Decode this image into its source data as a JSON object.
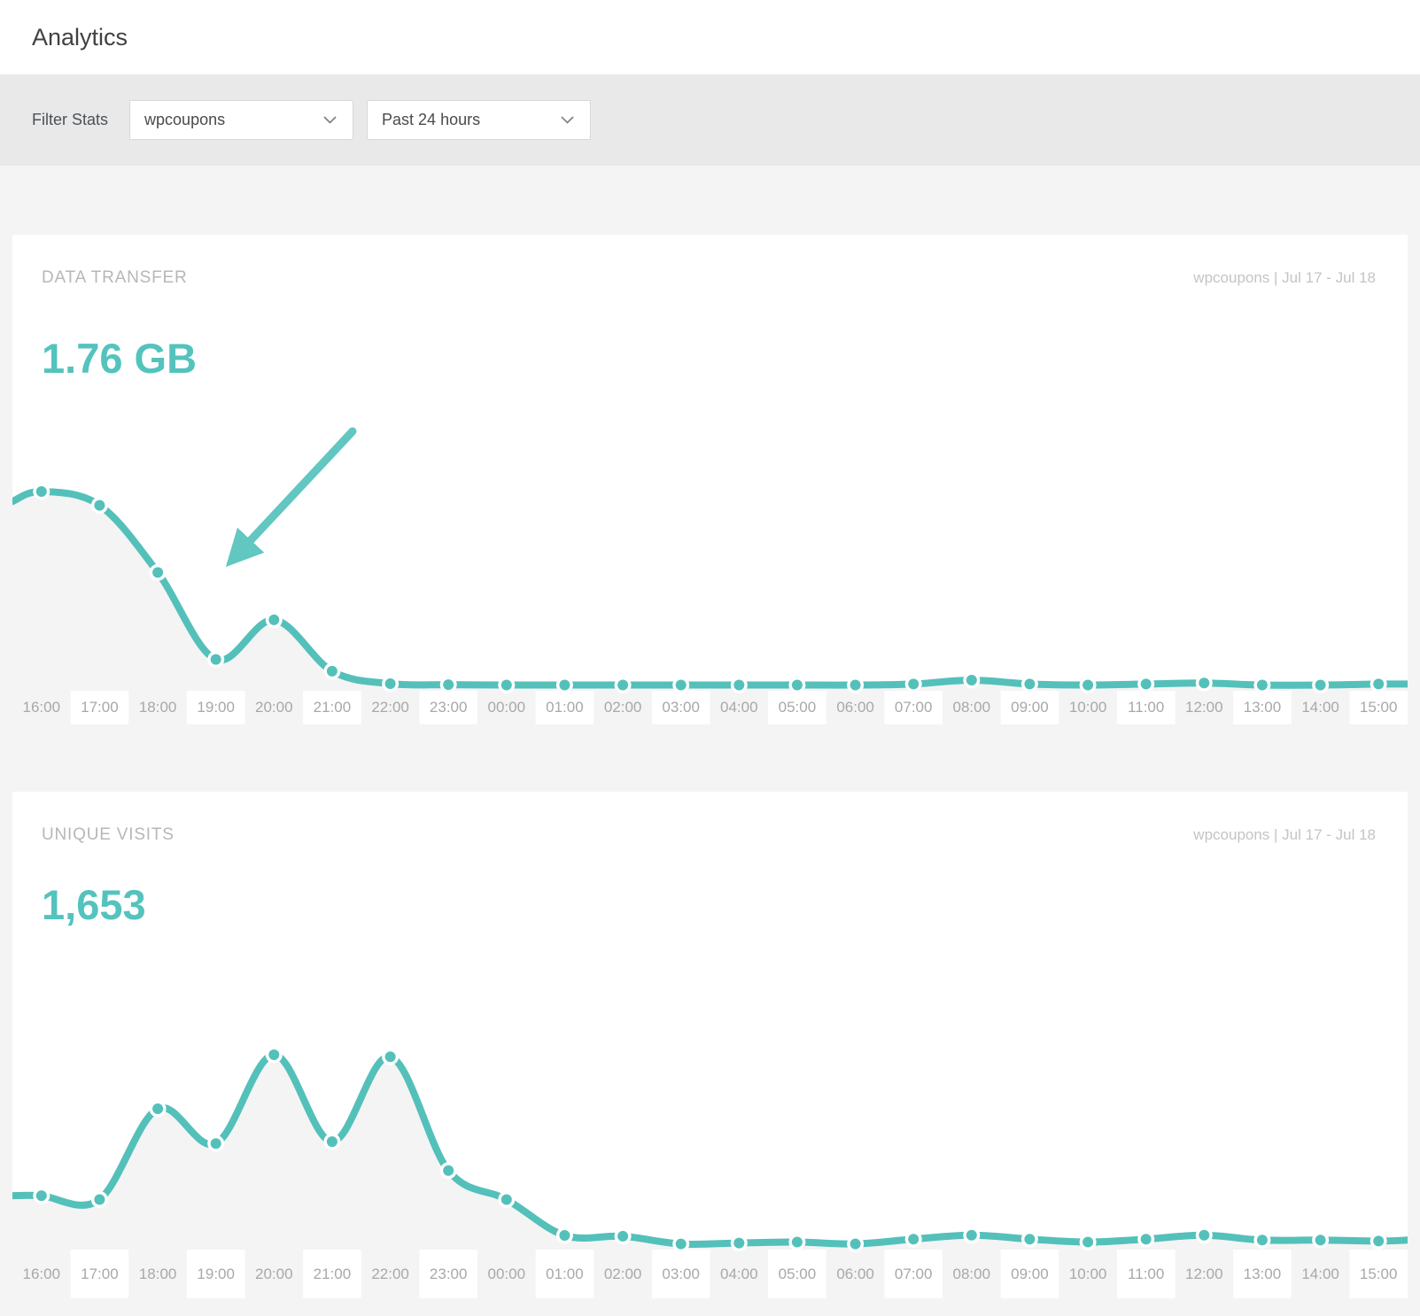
{
  "page": {
    "title": "Analytics",
    "accent_color": "#54c0ba",
    "value_color": "#54c3bd",
    "arrow_color": "#62c6c1",
    "area_fill_color": "#f4f4f4",
    "band_white_color": "#ffffff",
    "axis_label_color": "#a8a8a8"
  },
  "filter_bar": {
    "label": "Filter Stats",
    "site_select": {
      "value": "wpcoupons",
      "icon": "chevron-down-icon"
    },
    "range_select": {
      "value": "Past 24 hours",
      "icon": "chevron-down-icon"
    }
  },
  "cards": [
    {
      "title": "DATA TRANSFER",
      "meta": "wpcoupons | Jul 17 - Jul 18",
      "value": "1.76 GB",
      "annotation_icon": "arrow-down-left"
    },
    {
      "title": "UNIQUE VISITS",
      "meta": "wpcoupons | Jul 17 - Jul 18",
      "value": "1,653"
    }
  ],
  "chart_data": [
    {
      "type": "line",
      "title": "Data transfer - past 24 hours",
      "summary_value": "1.76 GB",
      "legend": "none",
      "y_axis": "none (unlabeled, values relative to max)",
      "categories": [
        "16:00",
        "17:00",
        "18:00",
        "19:00",
        "20:00",
        "21:00",
        "22:00",
        "23:00",
        "00:00",
        "01:00",
        "02:00",
        "03:00",
        "04:00",
        "05:00",
        "06:00",
        "07:00",
        "08:00",
        "09:00",
        "10:00",
        "11:00",
        "12:00",
        "13:00",
        "14:00",
        "15:00"
      ],
      "values_relative": [
        1.0,
        0.93,
        0.59,
        0.15,
        0.35,
        0.09,
        0.027,
        0.022,
        0.02,
        0.02,
        0.02,
        0.02,
        0.02,
        0.02,
        0.02,
        0.025,
        0.045,
        0.025,
        0.02,
        0.025,
        0.03,
        0.02,
        0.02,
        0.025
      ],
      "edge_start": 0.95,
      "edge_end": 0.025
    },
    {
      "type": "line",
      "title": "Unique visits - past 24 hours",
      "summary_value": "1,653",
      "legend": "none",
      "y_axis": "none (unlabeled, values relative to max)",
      "categories": [
        "16:00",
        "17:00",
        "18:00",
        "19:00",
        "20:00",
        "21:00",
        "22:00",
        "23:00",
        "00:00",
        "01:00",
        "02:00",
        "03:00",
        "04:00",
        "05:00",
        "06:00",
        "07:00",
        "08:00",
        "09:00",
        "10:00",
        "11:00",
        "12:00",
        "13:00",
        "14:00",
        "15:00"
      ],
      "values_relative": [
        0.27,
        0.25,
        0.72,
        0.54,
        1.0,
        0.55,
        0.99,
        0.4,
        0.25,
        0.064,
        0.06,
        0.02,
        0.025,
        0.03,
        0.02,
        0.045,
        0.065,
        0.045,
        0.03,
        0.045,
        0.065,
        0.04,
        0.04,
        0.035
      ],
      "edge_start": 0.27,
      "edge_end": 0.04
    }
  ]
}
